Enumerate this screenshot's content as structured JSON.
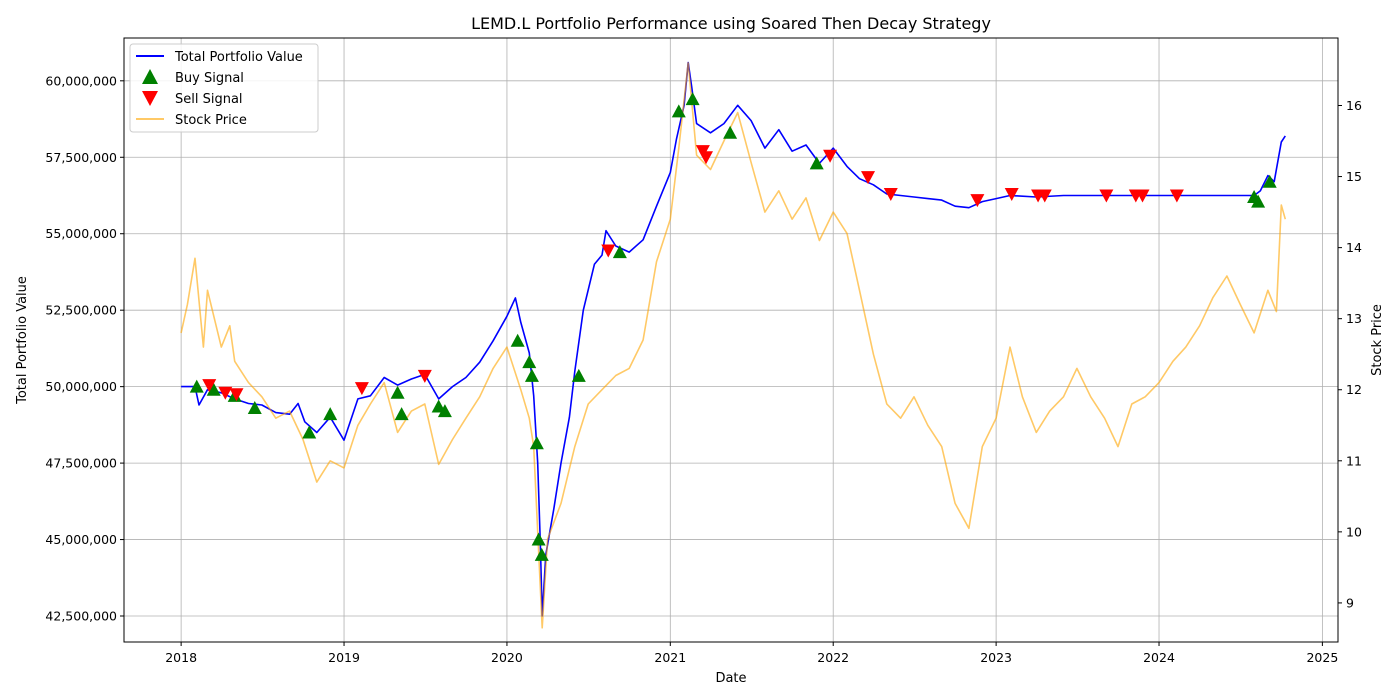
{
  "chart_data": {
    "type": "line",
    "title": "LEMD.L Portfolio Performance using Soared Then Decay Strategy",
    "xlabel": "Date",
    "ylabel": "Total Portfolio Value",
    "y2label": "Stock Price",
    "xlim": [
      "2017-08-26",
      "2025-02-05"
    ],
    "ylim": [
      41650000,
      61400000
    ],
    "y2lim": [
      8.45,
      16.95
    ],
    "grid": true,
    "legend_position": "top-left",
    "x_ticks": [
      "2018",
      "2019",
      "2020",
      "2021",
      "2022",
      "2023",
      "2024",
      "2025"
    ],
    "y_ticks": [
      42500000,
      45000000,
      47500000,
      50000000,
      52500000,
      55000000,
      57500000,
      60000000
    ],
    "y_tick_labels": [
      "42,500,000",
      "45,000,000",
      "47,500,000",
      "50,000,000",
      "52,500,000",
      "55,000,000",
      "57,500,000",
      "60,000,000"
    ],
    "y2_ticks": [
      9,
      10,
      11,
      12,
      13,
      14,
      15,
      16
    ],
    "y2_tick_labels": [
      "9",
      "10",
      "11",
      "12",
      "13",
      "14",
      "15",
      "16"
    ],
    "colors": {
      "portfolio": "#0000ff",
      "price": "#ffa500",
      "buy": "#008000",
      "sell": "#ff0000",
      "grid": "#b0b0b0"
    },
    "legend": [
      {
        "name": "Total Portfolio Value",
        "kind": "line",
        "color": "#0000ff"
      },
      {
        "name": "Buy Signal",
        "kind": "triangle-up",
        "color": "#008000"
      },
      {
        "name": "Sell Signal",
        "kind": "triangle-down",
        "color": "#ff0000"
      },
      {
        "name": "Stock Price",
        "kind": "line",
        "color": "#ffa500"
      }
    ],
    "series": [
      {
        "name": "Total Portfolio Value",
        "axis": "left",
        "points": [
          [
            "2018-01-01",
            50000000
          ],
          [
            "2018-02-01",
            50000000
          ],
          [
            "2018-02-10",
            49400000
          ],
          [
            "2018-03-01",
            49900000
          ],
          [
            "2018-04-01",
            49800000
          ],
          [
            "2018-05-01",
            49600000
          ],
          [
            "2018-06-01",
            49450000
          ],
          [
            "2018-07-01",
            49400000
          ],
          [
            "2018-08-01",
            49150000
          ],
          [
            "2018-09-01",
            49100000
          ],
          [
            "2018-09-20",
            49450000
          ],
          [
            "2018-10-05",
            48850000
          ],
          [
            "2018-11-01",
            48500000
          ],
          [
            "2018-12-01",
            49000000
          ],
          [
            "2019-01-01",
            48250000
          ],
          [
            "2019-02-01",
            49600000
          ],
          [
            "2019-03-01",
            49700000
          ],
          [
            "2019-04-01",
            50300000
          ],
          [
            "2019-05-01",
            50050000
          ],
          [
            "2019-06-01",
            50250000
          ],
          [
            "2019-07-01",
            50400000
          ],
          [
            "2019-08-01",
            49600000
          ],
          [
            "2019-09-01",
            50000000
          ],
          [
            "2019-10-01",
            50300000
          ],
          [
            "2019-11-01",
            50800000
          ],
          [
            "2019-12-01",
            51500000
          ],
          [
            "2020-01-01",
            52300000
          ],
          [
            "2020-01-20",
            52900000
          ],
          [
            "2020-02-01",
            52100000
          ],
          [
            "2020-02-20",
            51100000
          ],
          [
            "2020-03-01",
            49700000
          ],
          [
            "2020-03-10",
            47500000
          ],
          [
            "2020-03-16",
            44800000
          ],
          [
            "2020-03-20",
            42500000
          ],
          [
            "2020-03-28",
            44500000
          ],
          [
            "2020-04-15",
            46000000
          ],
          [
            "2020-05-01",
            47500000
          ],
          [
            "2020-05-20",
            49000000
          ],
          [
            "2020-06-01",
            50500000
          ],
          [
            "2020-06-20",
            52500000
          ],
          [
            "2020-07-15",
            54000000
          ],
          [
            "2020-08-01",
            54300000
          ],
          [
            "2020-08-10",
            55100000
          ],
          [
            "2020-09-01",
            54600000
          ],
          [
            "2020-10-01",
            54400000
          ],
          [
            "2020-11-01",
            54800000
          ],
          [
            "2020-12-01",
            55900000
          ],
          [
            "2021-01-01",
            57000000
          ],
          [
            "2021-01-15",
            58100000
          ],
          [
            "2021-02-01",
            59200000
          ],
          [
            "2021-02-10",
            60600000
          ],
          [
            "2021-02-18",
            59800000
          ],
          [
            "2021-03-01",
            58600000
          ],
          [
            "2021-04-01",
            58300000
          ],
          [
            "2021-05-01",
            58600000
          ],
          [
            "2021-06-01",
            59200000
          ],
          [
            "2021-07-01",
            58700000
          ],
          [
            "2021-08-01",
            57800000
          ],
          [
            "2021-09-01",
            58400000
          ],
          [
            "2021-10-01",
            57700000
          ],
          [
            "2021-11-01",
            57900000
          ],
          [
            "2021-12-01",
            57300000
          ],
          [
            "2022-01-01",
            57800000
          ],
          [
            "2022-02-01",
            57200000
          ],
          [
            "2022-03-01",
            56800000
          ],
          [
            "2022-04-01",
            56600000
          ],
          [
            "2022-05-01",
            56300000
          ],
          [
            "2022-06-01",
            56250000
          ],
          [
            "2022-07-01",
            56200000
          ],
          [
            "2022-08-01",
            56150000
          ],
          [
            "2022-09-01",
            56100000
          ],
          [
            "2022-10-01",
            55900000
          ],
          [
            "2022-11-01",
            55850000
          ],
          [
            "2022-12-01",
            56050000
          ],
          [
            "2023-01-01",
            56150000
          ],
          [
            "2023-02-01",
            56250000
          ],
          [
            "2023-04-01",
            56200000
          ],
          [
            "2023-06-01",
            56250000
          ],
          [
            "2023-09-01",
            56250000
          ],
          [
            "2023-12-01",
            56250000
          ],
          [
            "2024-03-01",
            56250000
          ],
          [
            "2024-06-01",
            56250000
          ],
          [
            "2024-08-01",
            56250000
          ],
          [
            "2024-08-15",
            56400000
          ],
          [
            "2024-09-01",
            56900000
          ],
          [
            "2024-09-15",
            56700000
          ],
          [
            "2024-10-01",
            58000000
          ],
          [
            "2024-10-10",
            58200000
          ]
        ]
      },
      {
        "name": "Stock Price",
        "axis": "right",
        "points": [
          [
            "2018-01-01",
            12.8
          ],
          [
            "2018-01-15",
            13.2
          ],
          [
            "2018-02-01",
            13.85
          ],
          [
            "2018-02-20",
            12.6
          ],
          [
            "2018-03-01",
            13.4
          ],
          [
            "2018-04-01",
            12.6
          ],
          [
            "2018-04-20",
            12.9
          ],
          [
            "2018-05-01",
            12.4
          ],
          [
            "2018-06-01",
            12.1
          ],
          [
            "2018-07-01",
            11.9
          ],
          [
            "2018-08-01",
            11.6
          ],
          [
            "2018-09-01",
            11.7
          ],
          [
            "2018-10-01",
            11.3
          ],
          [
            "2018-11-01",
            10.7
          ],
          [
            "2018-12-01",
            11.0
          ],
          [
            "2019-01-01",
            10.9
          ],
          [
            "2019-02-01",
            11.5
          ],
          [
            "2019-03-01",
            11.8
          ],
          [
            "2019-04-01",
            12.1
          ],
          [
            "2019-05-01",
            11.4
          ],
          [
            "2019-06-01",
            11.7
          ],
          [
            "2019-07-01",
            11.8
          ],
          [
            "2019-08-01",
            10.95
          ],
          [
            "2019-09-01",
            11.3
          ],
          [
            "2019-10-01",
            11.6
          ],
          [
            "2019-11-01",
            11.9
          ],
          [
            "2019-12-01",
            12.3
          ],
          [
            "2020-01-01",
            12.6
          ],
          [
            "2020-02-01",
            12.0
          ],
          [
            "2020-02-20",
            11.6
          ],
          [
            "2020-03-01",
            11.2
          ],
          [
            "2020-03-20",
            8.65
          ],
          [
            "2020-04-01",
            9.9
          ],
          [
            "2020-05-01",
            10.4
          ],
          [
            "2020-06-01",
            11.2
          ],
          [
            "2020-07-01",
            11.8
          ],
          [
            "2020-08-01",
            12.0
          ],
          [
            "2020-09-01",
            12.2
          ],
          [
            "2020-10-01",
            12.3
          ],
          [
            "2020-11-01",
            12.7
          ],
          [
            "2020-12-01",
            13.8
          ],
          [
            "2021-01-01",
            14.4
          ],
          [
            "2021-01-20",
            15.4
          ],
          [
            "2021-02-10",
            16.6
          ],
          [
            "2021-03-01",
            15.3
          ],
          [
            "2021-04-01",
            15.1
          ],
          [
            "2021-05-01",
            15.5
          ],
          [
            "2021-06-01",
            15.9
          ],
          [
            "2021-07-01",
            15.2
          ],
          [
            "2021-08-01",
            14.5
          ],
          [
            "2021-09-01",
            14.8
          ],
          [
            "2021-10-01",
            14.4
          ],
          [
            "2021-11-01",
            14.7
          ],
          [
            "2021-12-01",
            14.1
          ],
          [
            "2022-01-01",
            14.5
          ],
          [
            "2022-02-01",
            14.2
          ],
          [
            "2022-03-01",
            13.4
          ],
          [
            "2022-04-01",
            12.5
          ],
          [
            "2022-05-01",
            11.8
          ],
          [
            "2022-06-01",
            11.6
          ],
          [
            "2022-07-01",
            11.9
          ],
          [
            "2022-08-01",
            11.5
          ],
          [
            "2022-09-01",
            11.2
          ],
          [
            "2022-10-01",
            10.4
          ],
          [
            "2022-11-01",
            10.05
          ],
          [
            "2022-12-01",
            11.2
          ],
          [
            "2023-01-01",
            11.6
          ],
          [
            "2023-02-01",
            12.6
          ],
          [
            "2023-03-01",
            11.9
          ],
          [
            "2023-04-01",
            11.4
          ],
          [
            "2023-05-01",
            11.7
          ],
          [
            "2023-06-01",
            11.9
          ],
          [
            "2023-07-01",
            12.3
          ],
          [
            "2023-08-01",
            11.9
          ],
          [
            "2023-09-01",
            11.6
          ],
          [
            "2023-10-01",
            11.2
          ],
          [
            "2023-11-01",
            11.8
          ],
          [
            "2023-12-01",
            11.9
          ],
          [
            "2024-01-01",
            12.1
          ],
          [
            "2024-02-01",
            12.4
          ],
          [
            "2024-03-01",
            12.6
          ],
          [
            "2024-04-01",
            12.9
          ],
          [
            "2024-05-01",
            13.3
          ],
          [
            "2024-06-01",
            13.6
          ],
          [
            "2024-07-01",
            13.2
          ],
          [
            "2024-08-01",
            12.8
          ],
          [
            "2024-09-01",
            13.4
          ],
          [
            "2024-09-20",
            13.1
          ],
          [
            "2024-10-01",
            14.6
          ],
          [
            "2024-10-10",
            14.4
          ]
        ]
      }
    ],
    "buy_signals": [
      [
        "2018-02-05",
        50000000
      ],
      [
        "2018-03-15",
        49900000
      ],
      [
        "2018-05-01",
        49700000
      ],
      [
        "2018-06-15",
        49300000
      ],
      [
        "2018-10-15",
        48500000
      ],
      [
        "2018-12-01",
        49100000
      ],
      [
        "2019-05-01",
        49800000
      ],
      [
        "2019-05-10",
        49100000
      ],
      [
        "2019-08-01",
        49350000
      ],
      [
        "2019-08-15",
        49200000
      ],
      [
        "2020-01-25",
        51500000
      ],
      [
        "2020-02-20",
        50800000
      ],
      [
        "2020-02-26",
        50350000
      ],
      [
        "2020-03-08",
        48150000
      ],
      [
        "2020-03-12",
        45000000
      ],
      [
        "2020-03-19",
        44500000
      ],
      [
        "2020-06-10",
        50350000
      ],
      [
        "2020-09-10",
        54400000
      ],
      [
        "2021-01-20",
        59000000
      ],
      [
        "2021-02-20",
        59400000
      ],
      [
        "2021-05-15",
        58300000
      ],
      [
        "2021-11-25",
        57300000
      ],
      [
        "2024-08-01",
        56200000
      ],
      [
        "2024-08-10",
        56050000
      ],
      [
        "2024-09-05",
        56700000
      ]
    ],
    "sell_signals": [
      [
        "2018-03-05",
        50050000
      ],
      [
        "2018-04-10",
        49800000
      ],
      [
        "2018-05-05",
        49750000
      ],
      [
        "2019-02-10",
        49950000
      ],
      [
        "2019-07-01",
        50350000
      ],
      [
        "2020-08-15",
        54450000
      ],
      [
        "2021-03-15",
        57700000
      ],
      [
        "2021-03-22",
        57500000
      ],
      [
        "2021-12-25",
        57550000
      ],
      [
        "2022-03-20",
        56850000
      ],
      [
        "2022-05-10",
        56300000
      ],
      [
        "2022-11-20",
        56100000
      ],
      [
        "2023-02-05",
        56300000
      ],
      [
        "2023-04-05",
        56250000
      ],
      [
        "2023-04-20",
        56250000
      ],
      [
        "2023-09-05",
        56250000
      ],
      [
        "2023-11-10",
        56250000
      ],
      [
        "2023-11-25",
        56250000
      ],
      [
        "2024-02-10",
        56250000
      ]
    ]
  }
}
